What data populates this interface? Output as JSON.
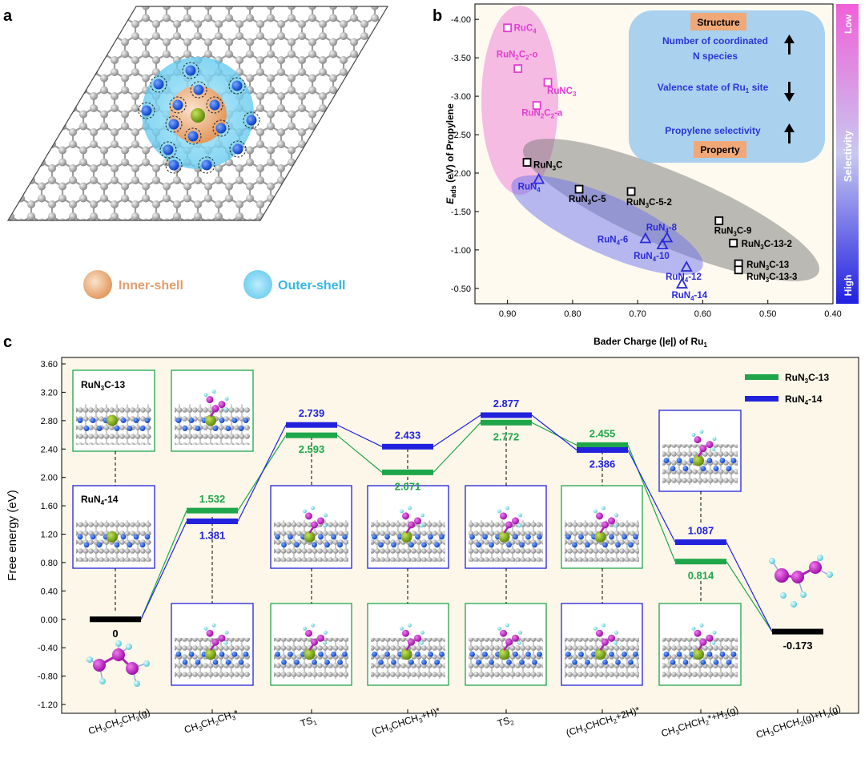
{
  "panel_labels": {
    "a": "a",
    "b": "b",
    "c": "c"
  },
  "panel_a": {
    "legend": [
      {
        "label": "Inner-shell",
        "color": "#e3a06a"
      },
      {
        "label": "Outer-shell",
        "color": "#37b7e6"
      }
    ]
  },
  "panel_b": {
    "structure_label": "Structure",
    "property_label": "Property",
    "trends": [
      {
        "text": "Number of coordinated N species",
        "arrow": "up"
      },
      {
        "text": "Valence state of Ru1 site",
        "arrow": "down"
      },
      {
        "text": "Propylene selectivity",
        "arrow": "up"
      }
    ],
    "colorbar": {
      "top": "Low",
      "middle": "Selectivity",
      "bottom": "High"
    }
  },
  "chart_data": [
    {
      "type": "scatter",
      "panel": "b",
      "xlabel": "Bader Charge (|e|) of Ru1",
      "ylabel": "E_ads (eV) of Propylene",
      "xlim": [
        0.95,
        0.4
      ],
      "ylim": [
        -4.2,
        -0.3
      ],
      "x_ticks": [
        "0.90",
        "0.80",
        "0.70",
        "0.60",
        "0.50",
        "0.40"
      ],
      "y_ticks": [
        "-4.00",
        "-3.50",
        "-3.00",
        "-2.50",
        "-2.00",
        "-1.50",
        "-1.00",
        "-0.50"
      ],
      "series": [
        {
          "color": "#e23fd2",
          "marker": "square",
          "points": [
            {
              "label": "RuC4",
              "x": 0.9,
              "y": -3.89
            },
            {
              "label": "RuN2C2-o",
              "x": 0.884,
              "y": -3.36
            },
            {
              "label": "RuNC3",
              "x": 0.838,
              "y": -3.18
            },
            {
              "label": "RuN2C2-a",
              "x": 0.855,
              "y": -2.88
            }
          ]
        },
        {
          "color": "#000000",
          "marker": "square",
          "points": [
            {
              "label": "RuN3C",
              "x": 0.87,
              "y": -2.14
            },
            {
              "label": "RuN3C-5",
              "x": 0.79,
              "y": -1.79
            },
            {
              "label": "RuN3C-5-2",
              "x": 0.71,
              "y": -1.76
            },
            {
              "label": "RuN3C-9",
              "x": 0.575,
              "y": -1.38
            },
            {
              "label": "RuN3C-13-2",
              "x": 0.553,
              "y": -1.09
            },
            {
              "label": "RuN3C-13",
              "x": 0.545,
              "y": -0.82
            },
            {
              "label": "RuN3C-13-3",
              "x": 0.545,
              "y": -0.74
            }
          ]
        },
        {
          "color": "#2b2bdc",
          "marker": "triangle",
          "points": [
            {
              "label": "RuN4",
              "x": 0.852,
              "y": -1.92
            },
            {
              "label": "RuN4-8",
              "x": 0.655,
              "y": -1.16
            },
            {
              "label": "RuN4-6",
              "x": 0.688,
              "y": -1.15
            },
            {
              "label": "RuN4-10",
              "x": 0.662,
              "y": -1.07
            },
            {
              "label": "RuN4-12",
              "x": 0.625,
              "y": -0.78
            },
            {
              "label": "RuN4-14",
              "x": 0.632,
              "y": -0.56
            }
          ]
        }
      ]
    },
    {
      "type": "line",
      "panel": "c",
      "ylabel": "Free energy (eV)",
      "ylim": [
        -1.2,
        3.6
      ],
      "y_ticks": [
        "3.60",
        "3.20",
        "2.80",
        "2.40",
        "2.00",
        "1.60",
        "1.20",
        "0.80",
        "0.40",
        "0.00",
        "-0.40",
        "-0.80",
        "-1.20"
      ],
      "categories": [
        "CH3CH2CH3(g)",
        "CH3CH2CH3*",
        "TS1",
        "(CH3CHCH3+H)*",
        "TS2",
        "(CH3CHCH2+2H)*",
        "CH3CHCH2*+H2(g)",
        "CH3CHCH2(g)+H2(g)"
      ],
      "series": [
        {
          "name": "RuN3C-13",
          "color": "#1fa64a",
          "values": [
            0,
            1.532,
            2.593,
            2.071,
            2.772,
            2.455,
            0.814,
            -0.173
          ]
        },
        {
          "name": "RuN4-14",
          "color": "#2222dd",
          "values": [
            0,
            1.381,
            2.739,
            2.433,
            2.877,
            2.386,
            1.087,
            -0.173
          ]
        }
      ],
      "labels": {
        "start": "0",
        "end": "-0.173",
        "green": [
          "1.532",
          "2.593",
          "2.071",
          "2.772",
          "2.455",
          "0.814"
        ],
        "blue": [
          "1.381",
          "2.739",
          "2.433",
          "2.877",
          "2.386",
          "1.087"
        ]
      },
      "inset_labels": {
        "green": "RuN3C-13",
        "blue": "RuN4-14"
      }
    }
  ]
}
